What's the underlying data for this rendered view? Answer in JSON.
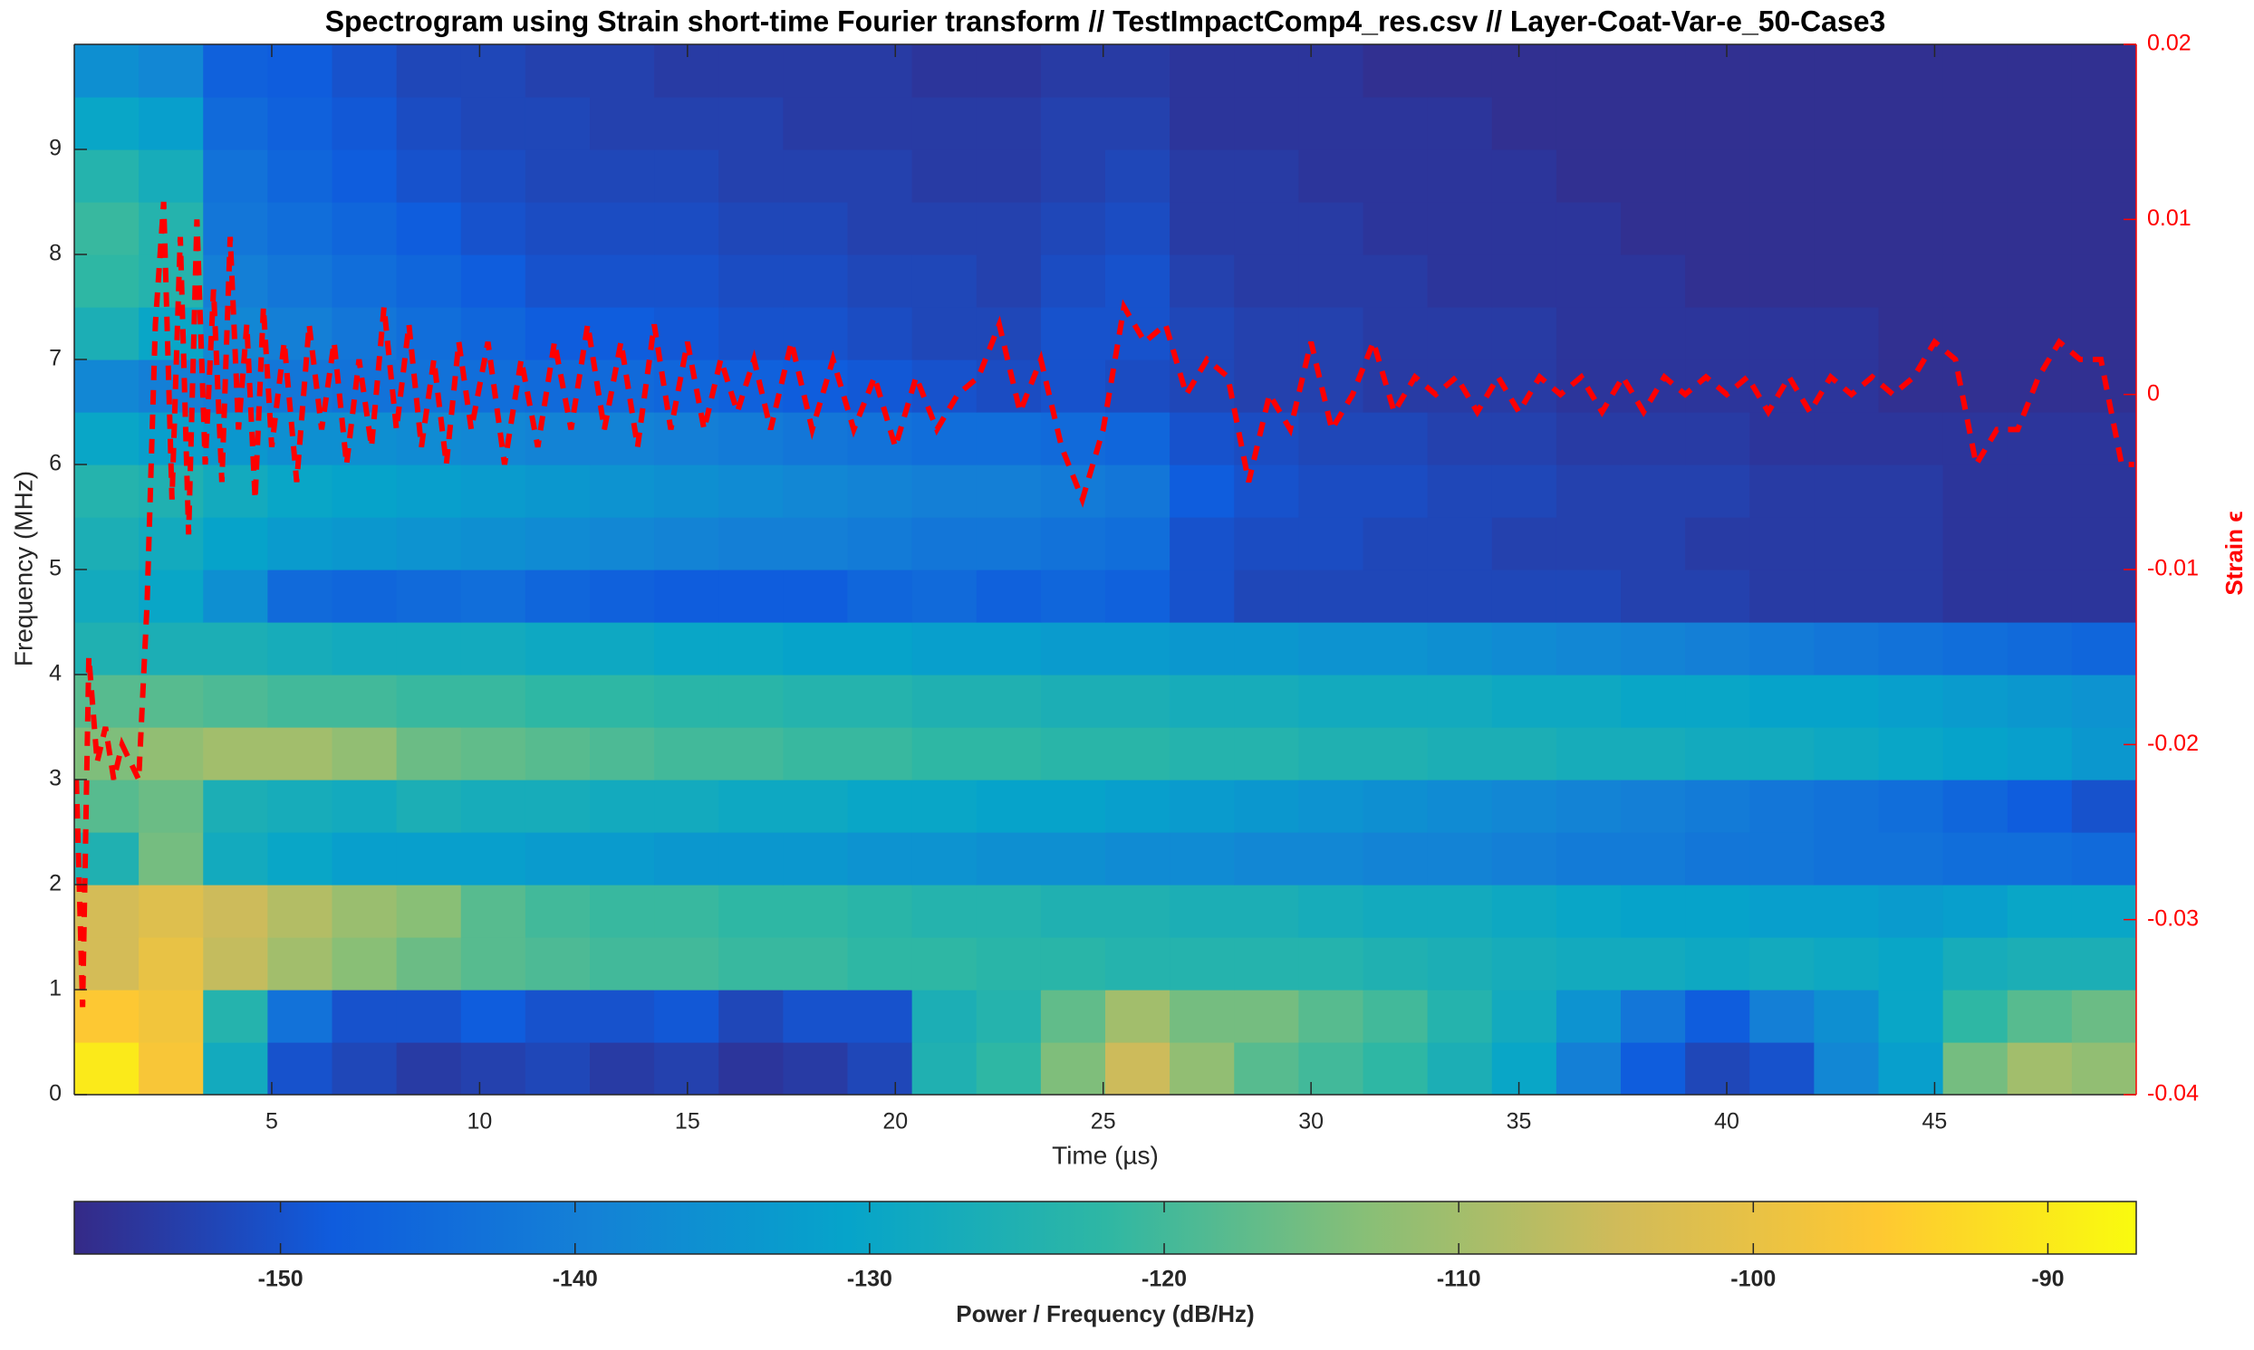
{
  "chart_data": {
    "type": "spectrogram",
    "title": "Spectrogram using Strain short-time Fourier transform //  TestImpactComp4_res.csv  // Layer-Coat-Var-e_50-Case3",
    "xlabel": "Time (µs)",
    "ylabel": "Frequency (MHz)",
    "y2label": "Strain ϵ",
    "colorbar_label": "Power / Frequency (dB/Hz)",
    "colormap": "parula",
    "xlim": [
      0.25,
      49.85
    ],
    "ylim": [
      0,
      10
    ],
    "y2lim": [
      -0.04,
      0.02
    ],
    "clim": [
      -157,
      -87
    ],
    "xticks": [
      5,
      10,
      15,
      20,
      25,
      30,
      35,
      40,
      45
    ],
    "yticks": [
      0,
      1,
      2,
      3,
      4,
      5,
      6,
      7,
      8,
      9
    ],
    "y2ticks": [
      -0.04,
      -0.03,
      -0.02,
      -0.01,
      0,
      0.01,
      0.02
    ],
    "cticks": [
      -150,
      -140,
      -130,
      -120,
      -110,
      -100,
      -90
    ],
    "y2color": "#ff0000",
    "time_bins": [
      0.25,
      1.8,
      3.35,
      4.9,
      6.45,
      8.0,
      9.55,
      11.1,
      12.65,
      14.2,
      15.75,
      17.3,
      18.85,
      20.4,
      21.95,
      23.5,
      25.05,
      26.6,
      28.15,
      29.7,
      31.25,
      32.8,
      34.35,
      35.9,
      37.45,
      39.0,
      40.55,
      42.1,
      43.65,
      45.2,
      46.75,
      48.3,
      49.85
    ],
    "freq_bins": [
      0,
      0.5,
      1,
      1.5,
      2,
      2.5,
      3,
      3.5,
      4,
      4.5,
      5,
      5.5,
      6,
      6.5,
      7,
      7.5,
      8,
      8.5,
      9,
      9.5,
      10
    ],
    "z": [
      [
        -90,
        -97,
        -128,
        -150,
        -152,
        -154,
        -153,
        -152,
        -154,
        -153,
        -155,
        -154,
        -152,
        -125,
        -122,
        -114,
        -105,
        -112,
        -118,
        -120,
        -122,
        -126,
        -130,
        -140,
        -148,
        -152,
        -150,
        -138,
        -132,
        -115,
        -110,
        -112
      ],
      [
        -96,
        -98,
        -124,
        -143,
        -150,
        -150,
        -148,
        -150,
        -150,
        -149,
        -152,
        -150,
        -150,
        -126,
        -124,
        -117,
        -110,
        -115,
        -115,
        -118,
        -120,
        -124,
        -128,
        -135,
        -142,
        -148,
        -140,
        -136,
        -130,
        -122,
        -118,
        -116
      ],
      [
        -104,
        -100,
        -106,
        -110,
        -113,
        -116,
        -118,
        -119,
        -120,
        -120,
        -121,
        -121,
        -122,
        -122,
        -123,
        -123,
        -124,
        -124,
        -124,
        -124,
        -125,
        -126,
        -127,
        -128,
        -128,
        -129,
        -128,
        -129,
        -130,
        -127,
        -126,
        -126
      ],
      [
        -104,
        -102,
        -105,
        -108,
        -111,
        -113,
        -118,
        -120,
        -121,
        -121,
        -122,
        -122,
        -123,
        -124,
        -124,
        -125,
        -125,
        -126,
        -126,
        -127,
        -128,
        -128,
        -129,
        -130,
        -131,
        -131,
        -132,
        -132,
        -133,
        -132,
        -130,
        -130
      ],
      [
        -125,
        -115,
        -128,
        -130,
        -132,
        -132,
        -132,
        -133,
        -133,
        -134,
        -134,
        -134,
        -135,
        -135,
        -136,
        -136,
        -137,
        -137,
        -138,
        -138,
        -139,
        -139,
        -140,
        -141,
        -141,
        -142,
        -142,
        -143,
        -143,
        -144,
        -144,
        -145
      ],
      [
        -118,
        -116,
        -126,
        -127,
        -128,
        -126,
        -127,
        -127,
        -128,
        -128,
        -129,
        -129,
        -130,
        -130,
        -131,
        -131,
        -132,
        -133,
        -134,
        -135,
        -136,
        -137,
        -138,
        -139,
        -140,
        -141,
        -142,
        -143,
        -144,
        -146,
        -148,
        -150
      ],
      [
        -114,
        -112,
        -110,
        -110,
        -112,
        -116,
        -117,
        -118,
        -119,
        -120,
        -120,
        -121,
        -121,
        -122,
        -122,
        -123,
        -123,
        -124,
        -124,
        -125,
        -125,
        -126,
        -126,
        -127,
        -127,
        -128,
        -128,
        -129,
        -130,
        -131,
        -132,
        -134
      ],
      [
        -118,
        -118,
        -119,
        -120,
        -120,
        -121,
        -121,
        -122,
        -122,
        -123,
        -123,
        -124,
        -124,
        -125,
        -125,
        -126,
        -126,
        -127,
        -127,
        -128,
        -128,
        -128,
        -129,
        -129,
        -130,
        -130,
        -131,
        -131,
        -132,
        -133,
        -134,
        -135
      ],
      [
        -125,
        -126,
        -126,
        -127,
        -128,
        -128,
        -128,
        -129,
        -129,
        -130,
        -130,
        -131,
        -131,
        -132,
        -132,
        -133,
        -133,
        -134,
        -134,
        -135,
        -135,
        -136,
        -137,
        -138,
        -139,
        -140,
        -141,
        -142,
        -143,
        -144,
        -145,
        -146
      ],
      [
        -128,
        -130,
        -136,
        -145,
        -146,
        -145,
        -144,
        -146,
        -147,
        -148,
        -148,
        -148,
        -146,
        -145,
        -147,
        -146,
        -147,
        -150,
        -152,
        -152,
        -152,
        -152,
        -152,
        -152,
        -153,
        -153,
        -154,
        -154,
        -154,
        -155,
        -155,
        -155
      ],
      [
        -126,
        -128,
        -131,
        -133,
        -134,
        -135,
        -136,
        -137,
        -138,
        -139,
        -140,
        -140,
        -141,
        -142,
        -142,
        -143,
        -144,
        -150,
        -151,
        -151,
        -152,
        -152,
        -153,
        -153,
        -153,
        -154,
        -154,
        -154,
        -154,
        -155,
        -155,
        -155
      ],
      [
        -124,
        -125,
        -128,
        -130,
        -131,
        -132,
        -133,
        -134,
        -135,
        -136,
        -137,
        -138,
        -139,
        -140,
        -140,
        -141,
        -142,
        -148,
        -150,
        -151,
        -151,
        -152,
        -152,
        -153,
        -153,
        -153,
        -154,
        -154,
        -154,
        -155,
        -155,
        -155
      ],
      [
        -130,
        -132,
        -134,
        -136,
        -136,
        -137,
        -138,
        -139,
        -139,
        -140,
        -141,
        -142,
        -143,
        -144,
        -144,
        -145,
        -146,
        -150,
        -151,
        -152,
        -152,
        -153,
        -153,
        -154,
        -154,
        -154,
        -155,
        -155,
        -155,
        -155,
        -155,
        -155
      ],
      [
        -138,
        -140,
        -141,
        -142,
        -143,
        -143,
        -144,
        -145,
        -145,
        -146,
        -147,
        -148,
        -149,
        -150,
        -151,
        -150,
        -151,
        -152,
        -153,
        -153,
        -154,
        -154,
        -154,
        -155,
        -155,
        -155,
        -155,
        -155,
        -156,
        -156,
        -156,
        -156
      ],
      [
        -126,
        -130,
        -138,
        -140,
        -142,
        -144,
        -146,
        -148,
        -148,
        -149,
        -150,
        -150,
        -151,
        -152,
        -152,
        -150,
        -150,
        -152,
        -153,
        -153,
        -154,
        -154,
        -154,
        -155,
        -155,
        -155,
        -155,
        -155,
        -156,
        -156,
        -156,
        -156
      ],
      [
        -122,
        -124,
        -140,
        -142,
        -144,
        -146,
        -148,
        -150,
        -150,
        -150,
        -151,
        -151,
        -152,
        -152,
        -153,
        -151,
        -150,
        -153,
        -154,
        -154,
        -154,
        -155,
        -155,
        -155,
        -155,
        -156,
        -156,
        -156,
        -156,
        -156,
        -156,
        -156
      ],
      [
        -121,
        -124,
        -142,
        -144,
        -146,
        -148,
        -150,
        -151,
        -151,
        -151,
        -152,
        -152,
        -153,
        -153,
        -153,
        -152,
        -151,
        -154,
        -154,
        -154,
        -155,
        -155,
        -155,
        -155,
        -156,
        -156,
        -156,
        -156,
        -156,
        -156,
        -156,
        -156
      ],
      [
        -124,
        -127,
        -143,
        -146,
        -148,
        -150,
        -151,
        -152,
        -152,
        -152,
        -153,
        -153,
        -153,
        -154,
        -154,
        -153,
        -152,
        -154,
        -154,
        -155,
        -155,
        -155,
        -155,
        -156,
        -156,
        -156,
        -156,
        -156,
        -156,
        -156,
        -156,
        -156
      ],
      [
        -130,
        -132,
        -145,
        -147,
        -149,
        -151,
        -152,
        -152,
        -153,
        -153,
        -153,
        -154,
        -154,
        -154,
        -154,
        -153,
        -153,
        -155,
        -155,
        -155,
        -155,
        -155,
        -156,
        -156,
        -156,
        -156,
        -156,
        -156,
        -156,
        -156,
        -156,
        -156
      ],
      [
        -136,
        -138,
        -147,
        -148,
        -150,
        -152,
        -152,
        -153,
        -153,
        -154,
        -154,
        -154,
        -154,
        -155,
        -155,
        -154,
        -154,
        -155,
        -155,
        -155,
        -156,
        -156,
        -156,
        -156,
        -156,
        -156,
        -156,
        -156,
        -156,
        -156,
        -156,
        -156
      ]
    ],
    "line": {
      "type": "line",
      "axis": "y2",
      "color": "#ff0000",
      "dashed": true,
      "x": [
        0.3,
        0.45,
        0.6,
        0.8,
        1.0,
        1.2,
        1.4,
        1.6,
        1.8,
        2.0,
        2.2,
        2.4,
        2.6,
        2.8,
        3.0,
        3.2,
        3.4,
        3.6,
        3.8,
        4.0,
        4.2,
        4.4,
        4.6,
        4.8,
        5.0,
        5.3,
        5.6,
        5.9,
        6.2,
        6.5,
        6.8,
        7.1,
        7.4,
        7.7,
        8.0,
        8.3,
        8.6,
        8.9,
        9.2,
        9.5,
        9.8,
        10.2,
        10.6,
        11.0,
        11.4,
        11.8,
        12.2,
        12.6,
        13.0,
        13.4,
        13.8,
        14.2,
        14.6,
        15.0,
        15.4,
        15.8,
        16.2,
        16.6,
        17.0,
        17.5,
        18.0,
        18.5,
        19.0,
        19.5,
        20.0,
        20.5,
        21.0,
        21.5,
        22.0,
        22.5,
        23.0,
        23.5,
        24.0,
        24.5,
        25.0,
        25.5,
        26.0,
        26.5,
        27.0,
        27.5,
        28.0,
        28.5,
        29.0,
        29.5,
        30.0,
        30.5,
        31.0,
        31.5,
        32.0,
        32.5,
        33.0,
        33.5,
        34.0,
        34.5,
        35.0,
        35.5,
        36.0,
        36.5,
        37.0,
        37.5,
        38.0,
        38.5,
        39.0,
        39.5,
        40.0,
        40.5,
        41.0,
        41.5,
        42.0,
        42.5,
        43.0,
        43.5,
        44.0,
        44.5,
        45.0,
        45.5,
        46.0,
        46.5,
        47.0,
        47.5,
        48.0,
        48.5,
        49.0,
        49.5,
        49.8
      ],
      "values": [
        -0.022,
        -0.035,
        -0.015,
        -0.021,
        -0.019,
        -0.022,
        -0.02,
        -0.021,
        -0.022,
        -0.012,
        0.004,
        0.011,
        -0.006,
        0.009,
        -0.008,
        0.01,
        -0.004,
        0.006,
        -0.005,
        0.009,
        -0.002,
        0.004,
        -0.006,
        0.005,
        -0.003,
        0.003,
        -0.005,
        0.004,
        -0.002,
        0.003,
        -0.004,
        0.002,
        -0.003,
        0.005,
        -0.002,
        0.004,
        -0.003,
        0.002,
        -0.004,
        0.003,
        -0.002,
        0.003,
        -0.004,
        0.002,
        -0.003,
        0.003,
        -0.002,
        0.004,
        -0.002,
        0.003,
        -0.003,
        0.004,
        -0.002,
        0.003,
        -0.002,
        0.002,
        -0.001,
        0.002,
        -0.002,
        0.003,
        -0.002,
        0.002,
        -0.002,
        0.001,
        -0.003,
        0.001,
        -0.002,
        0,
        0.001,
        0.004,
        -0.001,
        0.002,
        -0.003,
        -0.006,
        -0.002,
        0.005,
        0.003,
        0.004,
        0,
        0.002,
        0.001,
        -0.005,
        0,
        -0.002,
        0.003,
        -0.002,
        0,
        0.003,
        -0.001,
        0.001,
        0,
        0.001,
        -0.001,
        0.001,
        -0.001,
        0.001,
        0,
        0.001,
        -0.001,
        0.001,
        -0.001,
        0.001,
        0,
        0.001,
        0,
        0.001,
        -0.001,
        0.001,
        -0.001,
        0.001,
        0,
        0.001,
        0,
        0.001,
        0.003,
        0.002,
        -0.004,
        -0.002,
        -0.002,
        0.001,
        0.003,
        0.002,
        0.002,
        -0.004,
        -0.004
      ]
    }
  }
}
